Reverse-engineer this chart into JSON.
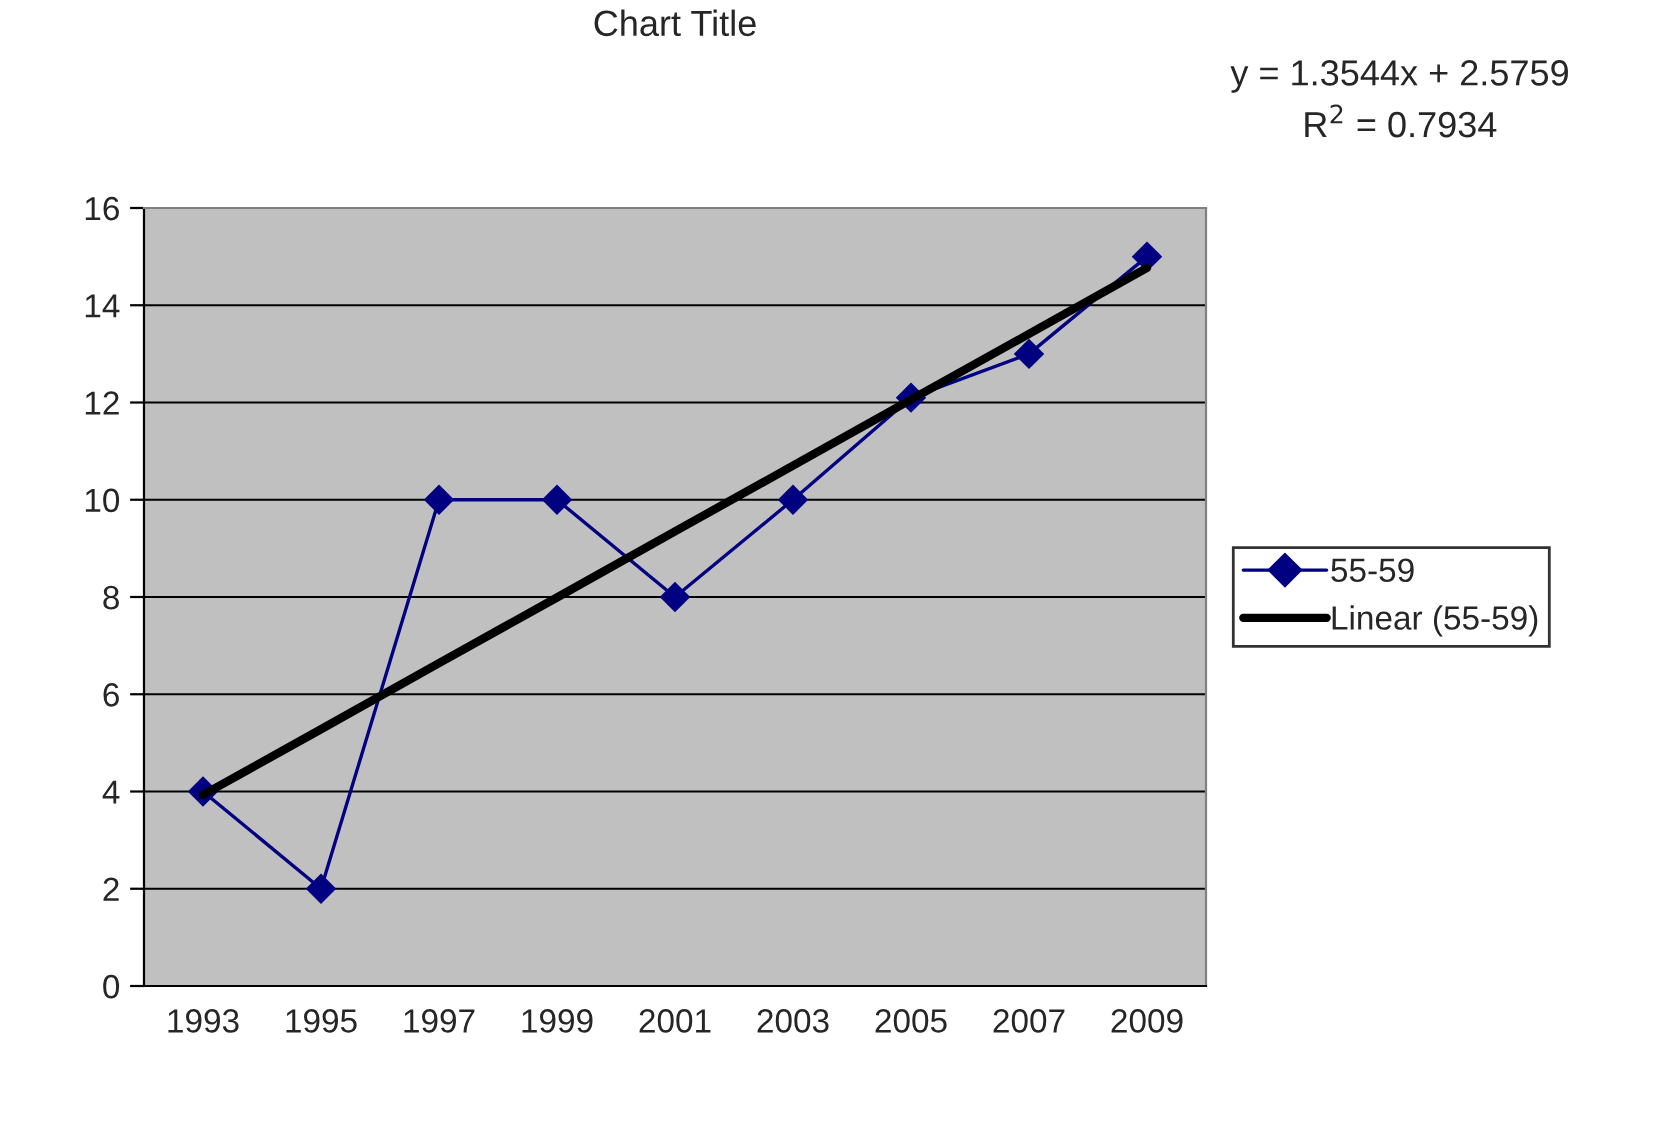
{
  "chart_data": {
    "type": "line",
    "title": "Chart Title",
    "categories": [
      "1993",
      "1995",
      "1997",
      "1999",
      "2001",
      "2003",
      "2005",
      "2007",
      "2009"
    ],
    "series": [
      {
        "name": "55-59",
        "color": "#000080",
        "marker": "diamond",
        "values": [
          4,
          2,
          10,
          10,
          8,
          10,
          12.1,
          13,
          15
        ]
      },
      {
        "name": "Linear (55-59)",
        "color": "#000000",
        "marker": "none",
        "values": [
          3.93,
          5.28,
          6.64,
          7.99,
          9.35,
          10.7,
          12.06,
          13.41,
          14.77
        ]
      }
    ],
    "ylim": [
      0,
      16
    ],
    "yticks": [
      0,
      2,
      4,
      6,
      8,
      10,
      12,
      14,
      16
    ],
    "grid": "y",
    "legend": "right",
    "annotations": [
      "y = 1.3544x + 2.5759",
      "R$^{2}$ = 0.7934"
    ]
  }
}
